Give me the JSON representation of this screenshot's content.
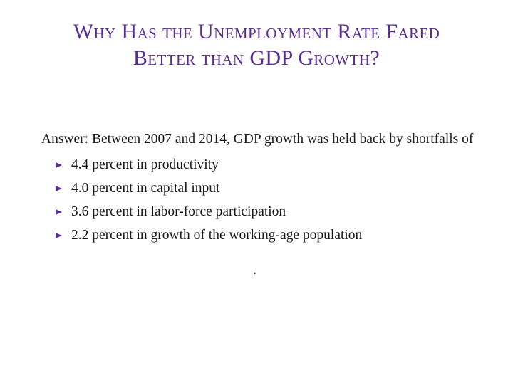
{
  "slide": {
    "title_line1": "Why Has the Unemployment Rate Fared",
    "title_line2": "Better than GDP Growth?",
    "answer_text": "Answer: Between 2007 and 2014, GDP growth was held back by shortfalls of",
    "bullets": [
      "4.4 percent in productivity",
      "4.0 percent in capital input",
      "3.6 percent in labor-force participation",
      "2.2 percent in growth of the working-age population"
    ],
    "trailing_mark": "."
  },
  "colors": {
    "title": "#5b2d91",
    "bullet": "#5b2d91",
    "body_text": "#1a1a1a",
    "background": "#ffffff"
  },
  "icons": {
    "bullet": "triangle-right-icon"
  }
}
